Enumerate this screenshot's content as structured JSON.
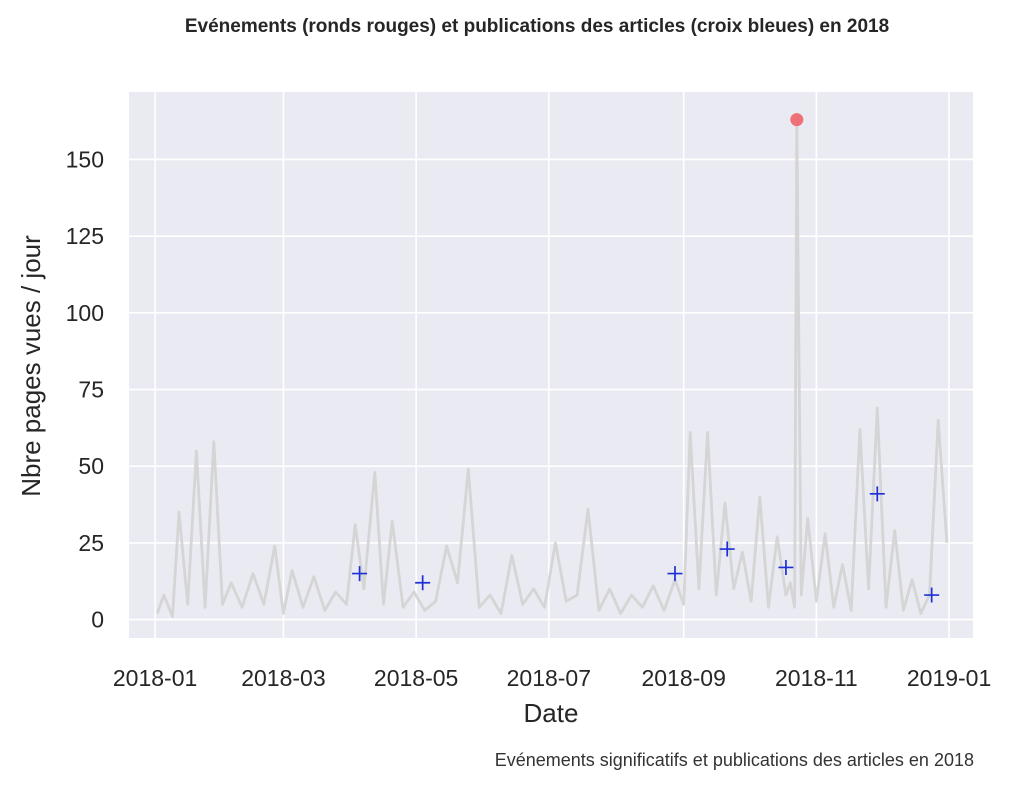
{
  "chart_data": {
    "type": "line",
    "title": "Evénements (ronds rouges) et publications des articles (croix bleues) en 2018",
    "caption": "Evénements significatifs et publications des articles en 2018",
    "xlabel": "Date",
    "ylabel": "Nbre pages vues / jour",
    "xlim": [
      "2017-12-20",
      "2019-01-12"
    ],
    "ylim": [
      -6,
      172
    ],
    "grid": true,
    "x_ticks": [
      "2018-01-01",
      "2018-03-01",
      "2018-05-01",
      "2018-07-01",
      "2018-09-01",
      "2018-11-01",
      "2019-01-01"
    ],
    "x_tick_labels": [
      "2018-01",
      "2018-03",
      "2018-05",
      "2018-07",
      "2018-09",
      "2018-11",
      "2019-01"
    ],
    "y_ticks": [
      0,
      25,
      50,
      75,
      100,
      125,
      150
    ],
    "y_tick_labels": [
      "0",
      "25",
      "50",
      "75",
      "100",
      "125",
      "150"
    ],
    "colors": {
      "background": "#eaeaf2",
      "grid": "#ffffff",
      "line": "#d3d3d3",
      "event": "#ee6a72",
      "publication": "#1f2fd6"
    },
    "series": [
      {
        "kind": "line",
        "x": [
          "2018-01-02",
          "2018-01-05",
          "2018-01-09",
          "2018-01-12",
          "2018-01-16",
          "2018-01-20",
          "2018-01-24",
          "2018-01-28",
          "2018-02-01",
          "2018-02-05",
          "2018-02-10",
          "2018-02-15",
          "2018-02-20",
          "2018-02-25",
          "2018-03-01",
          "2018-03-05",
          "2018-03-10",
          "2018-03-15",
          "2018-03-20",
          "2018-03-25",
          "2018-03-30",
          "2018-04-03",
          "2018-04-07",
          "2018-04-12",
          "2018-04-16",
          "2018-04-20",
          "2018-04-25",
          "2018-04-30",
          "2018-05-05",
          "2018-05-10",
          "2018-05-15",
          "2018-05-20",
          "2018-05-25",
          "2018-05-30",
          "2018-06-04",
          "2018-06-09",
          "2018-06-14",
          "2018-06-19",
          "2018-06-24",
          "2018-06-29",
          "2018-07-04",
          "2018-07-09",
          "2018-07-14",
          "2018-07-19",
          "2018-07-24",
          "2018-07-29",
          "2018-08-03",
          "2018-08-08",
          "2018-08-13",
          "2018-08-18",
          "2018-08-23",
          "2018-08-28",
          "2018-09-01",
          "2018-09-04",
          "2018-09-08",
          "2018-09-12",
          "2018-09-16",
          "2018-09-20",
          "2018-09-24",
          "2018-09-28",
          "2018-10-02",
          "2018-10-06",
          "2018-10-10",
          "2018-10-14",
          "2018-10-18",
          "2018-10-20",
          "2018-10-22",
          "2018-10-23",
          "2018-10-25",
          "2018-10-28",
          "2018-11-01",
          "2018-11-05",
          "2018-11-09",
          "2018-11-13",
          "2018-11-17",
          "2018-11-21",
          "2018-11-25",
          "2018-11-29",
          "2018-12-03",
          "2018-12-07",
          "2018-12-11",
          "2018-12-15",
          "2018-12-19",
          "2018-12-23",
          "2018-12-27",
          "2018-12-31"
        ],
        "y": [
          2,
          8,
          1,
          35,
          5,
          55,
          4,
          58,
          5,
          12,
          4,
          15,
          5,
          24,
          2,
          16,
          4,
          14,
          3,
          9,
          5,
          31,
          10,
          48,
          5,
          32,
          4,
          9,
          3,
          6,
          24,
          12,
          49,
          4,
          8,
          2,
          21,
          5,
          10,
          4,
          25,
          6,
          8,
          36,
          3,
          10,
          2,
          8,
          4,
          11,
          3,
          13,
          5,
          61,
          10,
          61,
          8,
          38,
          10,
          22,
          6,
          40,
          4,
          27,
          8,
          12,
          4,
          163,
          8,
          33,
          6,
          28,
          4,
          18,
          3,
          62,
          10,
          69,
          4,
          29,
          3,
          13,
          2,
          8,
          65,
          25
        ]
      },
      {
        "kind": "scatter",
        "name": "Evénements",
        "marker": "circle",
        "x": [
          "2018-10-23"
        ],
        "y": [
          163
        ]
      },
      {
        "kind": "scatter",
        "name": "Publications des articles",
        "marker": "plus",
        "x": [
          "2018-04-05",
          "2018-05-04",
          "2018-08-28",
          "2018-09-21",
          "2018-10-18",
          "2018-11-29",
          "2018-12-24"
        ],
        "y": [
          15,
          12,
          15,
          23,
          17,
          41,
          8
        ]
      }
    ]
  }
}
